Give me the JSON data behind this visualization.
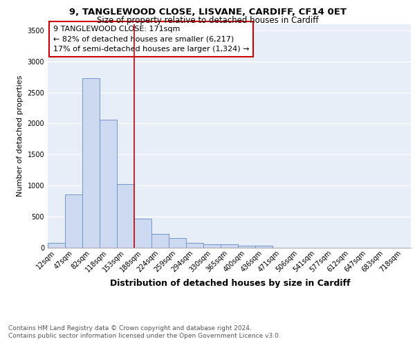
{
  "title1": "9, TANGLEWOOD CLOSE, LISVANE, CARDIFF, CF14 0ET",
  "title2": "Size of property relative to detached houses in Cardiff",
  "xlabel": "Distribution of detached houses by size in Cardiff",
  "ylabel": "Number of detached properties",
  "categories": [
    "12sqm",
    "47sqm",
    "82sqm",
    "118sqm",
    "153sqm",
    "188sqm",
    "224sqm",
    "259sqm",
    "294sqm",
    "330sqm",
    "365sqm",
    "400sqm",
    "436sqm",
    "471sqm",
    "506sqm",
    "541sqm",
    "577sqm",
    "612sqm",
    "647sqm",
    "683sqm",
    "718sqm"
  ],
  "values": [
    70,
    850,
    2730,
    2060,
    1020,
    460,
    220,
    150,
    70,
    55,
    45,
    30,
    25,
    0,
    0,
    0,
    0,
    0,
    0,
    0,
    0
  ],
  "bar_color": "#ccd9f0",
  "bar_edge_color": "#7096c8",
  "vline_x": 4.5,
  "vline_color": "#cc0000",
  "annotation_line1": "9 TANGLEWOOD CLOSE: 171sqm",
  "annotation_line2": "← 82% of detached houses are smaller (6,217)",
  "annotation_line3": "17% of semi-detached houses are larger (1,324) →",
  "annotation_box_color": "white",
  "annotation_box_edge_color": "#cc0000",
  "ylim": [
    0,
    3600
  ],
  "yticks": [
    0,
    500,
    1000,
    1500,
    2000,
    2500,
    3000,
    3500
  ],
  "bg_color": "#e8eef8",
  "grid_color": "white",
  "footer1": "Contains HM Land Registry data © Crown copyright and database right 2024.",
  "footer2": "Contains public sector information licensed under the Open Government Licence v3.0.",
  "title1_fontsize": 9.5,
  "title2_fontsize": 8.5,
  "xlabel_fontsize": 9,
  "ylabel_fontsize": 8,
  "tick_fontsize": 7,
  "annot_fontsize": 8,
  "footer_fontsize": 6.5
}
